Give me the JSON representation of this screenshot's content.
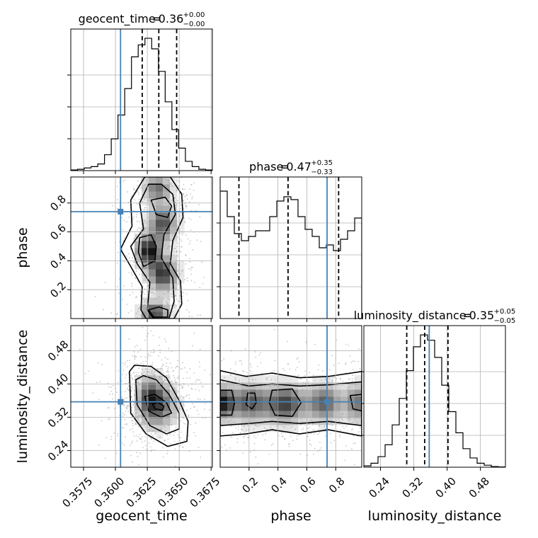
{
  "chart_data": {
    "type": "corner",
    "parameters": [
      {
        "name": "geocent_time",
        "xlabel": "geocent_time",
        "ylabel": "",
        "range": [
          0.3565,
          0.3676
        ],
        "ticks": [
          "0.3575",
          "0.3600",
          "0.3625",
          "0.3650",
          "0.3675"
        ],
        "tick_values": [
          0.3575,
          0.36,
          0.3625,
          0.365,
          0.3675
        ],
        "title_value": "0.36",
        "title_plus": "+0.00",
        "title_minus": "−0.00",
        "quantiles": [
          0.3621,
          0.3634,
          0.3648
        ],
        "truth": 0.3604,
        "hist_max": 1.07,
        "hist": [
          0.005,
          0.01,
          0.02,
          0.03,
          0.05,
          0.12,
          0.24,
          0.42,
          0.62,
          0.86,
          0.95,
          1.0,
          0.92,
          0.75,
          0.52,
          0.31,
          0.17,
          0.07,
          0.03,
          0.01,
          0.005
        ]
      },
      {
        "name": "phase",
        "xlabel": "phase",
        "ylabel": "phase",
        "range": [
          0.0,
          0.98
        ],
        "ticks": [
          "0.2",
          "0.4",
          "0.6",
          "0.8"
        ],
        "tick_values": [
          0.2,
          0.4,
          0.6,
          0.8
        ],
        "title_value": "0.47",
        "title_plus": "+0.35",
        "title_minus": "−0.33",
        "quantiles": [
          0.13,
          0.47,
          0.82
        ],
        "truth": 0.74,
        "hist_max": 1.0,
        "hist": [
          0.9,
          0.72,
          0.6,
          0.55,
          0.58,
          0.62,
          0.62,
          0.72,
          0.83,
          0.86,
          0.84,
          0.72,
          0.63,
          0.58,
          0.5,
          0.52,
          0.48,
          0.56,
          0.62,
          0.71
        ]
      },
      {
        "name": "luminosity_distance",
        "xlabel": "luminosity_distance",
        "ylabel": "luminosity_distance",
        "range": [
          0.2,
          0.54
        ],
        "ticks": [
          "0.24",
          "0.32",
          "0.40",
          "0.48"
        ],
        "tick_values": [
          0.24,
          0.32,
          0.4,
          0.48
        ],
        "title_value": "0.35",
        "title_plus": "+0.05",
        "title_minus": "−0.05",
        "quantiles": [
          0.303,
          0.346,
          0.402
        ],
        "truth": 0.357,
        "hist_max": 1.07,
        "hist": [
          0.01,
          0.03,
          0.08,
          0.17,
          0.32,
          0.52,
          0.73,
          0.91,
          1.0,
          0.96,
          0.83,
          0.62,
          0.42,
          0.26,
          0.14,
          0.07,
          0.03,
          0.015,
          0.005,
          0.002
        ]
      }
    ],
    "pairs": [
      {
        "x_param": 0,
        "y_param": 1,
        "truth_point": [
          0.3604,
          0.74
        ],
        "blobs": [
          {
            "cx": 0.3626,
            "cy": 0.47,
            "sx": 0.0006,
            "sy": 0.07,
            "w": 1.0
          },
          {
            "cx": 0.3637,
            "cy": 0.31,
            "sx": 0.0007,
            "sy": 0.08,
            "w": 0.85
          },
          {
            "cx": 0.3637,
            "cy": 0.66,
            "sx": 0.0007,
            "sy": 0.08,
            "w": 0.75
          },
          {
            "cx": 0.3631,
            "cy": 0.04,
            "sx": 0.0007,
            "sy": 0.05,
            "w": 0.8
          },
          {
            "cx": 0.3633,
            "cy": 0.9,
            "sx": 0.0007,
            "sy": 0.06,
            "w": 0.6
          }
        ],
        "contours": [
          {
            "level": "outer",
            "points": [
              [
                0.3623,
                0.98
              ],
              [
                0.3612,
                0.82
              ],
              [
                0.3613,
                0.64
              ],
              [
                0.3604,
                0.48
              ],
              [
                0.3612,
                0.36
              ],
              [
                0.3621,
                0.22
              ],
              [
                0.362,
                0.06
              ],
              [
                0.3624,
                0.0
              ],
              [
                0.3646,
                0.0
              ],
              [
                0.3652,
                0.1
              ],
              [
                0.3651,
                0.26
              ],
              [
                0.3643,
                0.38
              ],
              [
                0.3645,
                0.54
              ],
              [
                0.3653,
                0.7
              ],
              [
                0.3652,
                0.86
              ],
              [
                0.3643,
                0.98
              ]
            ]
          },
          {
            "level": "middle",
            "points": [
              [
                0.3626,
                0.93
              ],
              [
                0.3619,
                0.8
              ],
              [
                0.3622,
                0.62
              ],
              [
                0.3612,
                0.5
              ],
              [
                0.3617,
                0.38
              ],
              [
                0.3627,
                0.25
              ],
              [
                0.3625,
                0.06
              ],
              [
                0.363,
                0.0
              ],
              [
                0.3642,
                0.0
              ],
              [
                0.3646,
                0.12
              ],
              [
                0.3645,
                0.28
              ],
              [
                0.3636,
                0.42
              ],
              [
                0.3638,
                0.58
              ],
              [
                0.3647,
                0.72
              ],
              [
                0.3645,
                0.86
              ],
              [
                0.3636,
                0.93
              ]
            ]
          },
          {
            "level": "inner",
            "points": [
              [
                0.3619,
                0.56
              ],
              [
                0.3618,
                0.46
              ],
              [
                0.3622,
                0.36
              ],
              [
                0.3631,
                0.4
              ],
              [
                0.3632,
                0.5
              ],
              [
                0.3628,
                0.58
              ]
            ]
          },
          {
            "level": "inner-top",
            "points": [
              [
                0.3628,
                0.82
              ],
              [
                0.3632,
                0.72
              ],
              [
                0.3641,
                0.7
              ],
              [
                0.3644,
                0.78
              ],
              [
                0.3639,
                0.84
              ]
            ]
          },
          {
            "level": "inner-bottom",
            "points": [
              [
                0.3626,
                0.06
              ],
              [
                0.363,
                0.01
              ],
              [
                0.3641,
                0.01
              ],
              [
                0.3641,
                0.06
              ],
              [
                0.3634,
                0.08
              ]
            ]
          }
        ]
      },
      {
        "x_param": 0,
        "y_param": 2,
        "truth_point": [
          0.3604,
          0.357
        ],
        "blobs": [
          {
            "cx": 0.3633,
            "cy": 0.35,
            "sx": 0.0009,
            "sy": 0.035,
            "w": 1.0
          },
          {
            "cx": 0.3626,
            "cy": 0.375,
            "sx": 0.0006,
            "sy": 0.03,
            "w": 0.6
          }
        ],
        "contours": [
          {
            "level": "outer",
            "points": [
              [
                0.3611,
                0.43
              ],
              [
                0.3612,
                0.33
              ],
              [
                0.3624,
                0.28
              ],
              [
                0.3641,
                0.25
              ],
              [
                0.3656,
                0.262
              ],
              [
                0.3657,
                0.31
              ],
              [
                0.365,
                0.36
              ],
              [
                0.364,
                0.415
              ],
              [
                0.3628,
                0.442
              ],
              [
                0.3615,
                0.445
              ]
            ]
          },
          {
            "level": "middle",
            "points": [
              [
                0.3616,
                0.41
              ],
              [
                0.3617,
                0.35
              ],
              [
                0.3627,
                0.3
              ],
              [
                0.364,
                0.28
              ],
              [
                0.365,
                0.292
              ],
              [
                0.365,
                0.33
              ],
              [
                0.3642,
                0.375
              ],
              [
                0.3632,
                0.41
              ],
              [
                0.3622,
                0.42
              ]
            ]
          },
          {
            "level": "inner",
            "points": [
              [
                0.3623,
                0.37
              ],
              [
                0.3626,
                0.335
              ],
              [
                0.3636,
                0.32
              ],
              [
                0.3644,
                0.33
              ],
              [
                0.364,
                0.355
              ],
              [
                0.3631,
                0.375
              ]
            ]
          },
          {
            "level": "core",
            "points": [
              [
                0.3629,
                0.352
              ],
              [
                0.3631,
                0.34
              ],
              [
                0.3637,
                0.337
              ],
              [
                0.3638,
                0.347
              ],
              [
                0.3633,
                0.356
              ]
            ]
          }
        ]
      },
      {
        "x_param": 1,
        "y_param": 2,
        "truth_point": [
          0.74,
          0.357
        ],
        "blobs": [
          {
            "cx": 0.02,
            "cy": 0.355,
            "sx": 0.05,
            "sy": 0.025,
            "w": 0.95
          },
          {
            "cx": 0.2,
            "cy": 0.355,
            "sx": 0.09,
            "sy": 0.03,
            "w": 0.75
          },
          {
            "cx": 0.45,
            "cy": 0.352,
            "sx": 0.09,
            "sy": 0.03,
            "w": 0.85
          },
          {
            "cx": 0.72,
            "cy": 0.355,
            "sx": 0.08,
            "sy": 0.03,
            "w": 0.7
          },
          {
            "cx": 0.95,
            "cy": 0.355,
            "sx": 0.06,
            "sy": 0.03,
            "w": 0.6
          }
        ],
        "contours": [
          {
            "level": "outer",
            "points": [
              [
                0.0,
                0.432
              ],
              [
                0.18,
                0.418
              ],
              [
                0.36,
                0.426
              ],
              [
                0.55,
                0.415
              ],
              [
                0.75,
                0.418
              ],
              [
                0.98,
                0.43
              ],
              [
                0.98,
                0.275
              ],
              [
                0.75,
                0.29
              ],
              [
                0.55,
                0.28
              ],
              [
                0.36,
                0.29
              ],
              [
                0.18,
                0.28
              ],
              [
                0.0,
                0.275
              ]
            ]
          },
          {
            "level": "middle",
            "points": [
              [
                0.0,
                0.41
              ],
              [
                0.2,
                0.395
              ],
              [
                0.36,
                0.4
              ],
              [
                0.55,
                0.395
              ],
              [
                0.75,
                0.398
              ],
              [
                0.98,
                0.405
              ],
              [
                0.98,
                0.3
              ],
              [
                0.75,
                0.31
              ],
              [
                0.55,
                0.305
              ],
              [
                0.36,
                0.31
              ],
              [
                0.2,
                0.305
              ],
              [
                0.0,
                0.3
              ]
            ]
          },
          {
            "level": "inner-left",
            "points": [
              [
                0.0,
                0.385
              ],
              [
                0.08,
                0.385
              ],
              [
                0.1,
                0.355
              ],
              [
                0.08,
                0.325
              ],
              [
                0.0,
                0.325
              ]
            ]
          },
          {
            "level": "inner-mid",
            "points": [
              [
                0.36,
                0.385
              ],
              [
                0.5,
                0.388
              ],
              [
                0.56,
                0.355
              ],
              [
                0.5,
                0.322
              ],
              [
                0.38,
                0.325
              ],
              [
                0.34,
                0.355
              ]
            ]
          },
          {
            "level": "inner-c",
            "points": [
              [
                0.19,
                0.378
              ],
              [
                0.24,
                0.378
              ],
              [
                0.25,
                0.355
              ],
              [
                0.22,
                0.34
              ],
              [
                0.18,
                0.35
              ]
            ]
          },
          {
            "level": "inner-right",
            "points": [
              [
                0.9,
                0.372
              ],
              [
                0.98,
                0.375
              ],
              [
                0.98,
                0.335
              ],
              [
                0.92,
                0.34
              ]
            ]
          }
        ]
      }
    ]
  }
}
